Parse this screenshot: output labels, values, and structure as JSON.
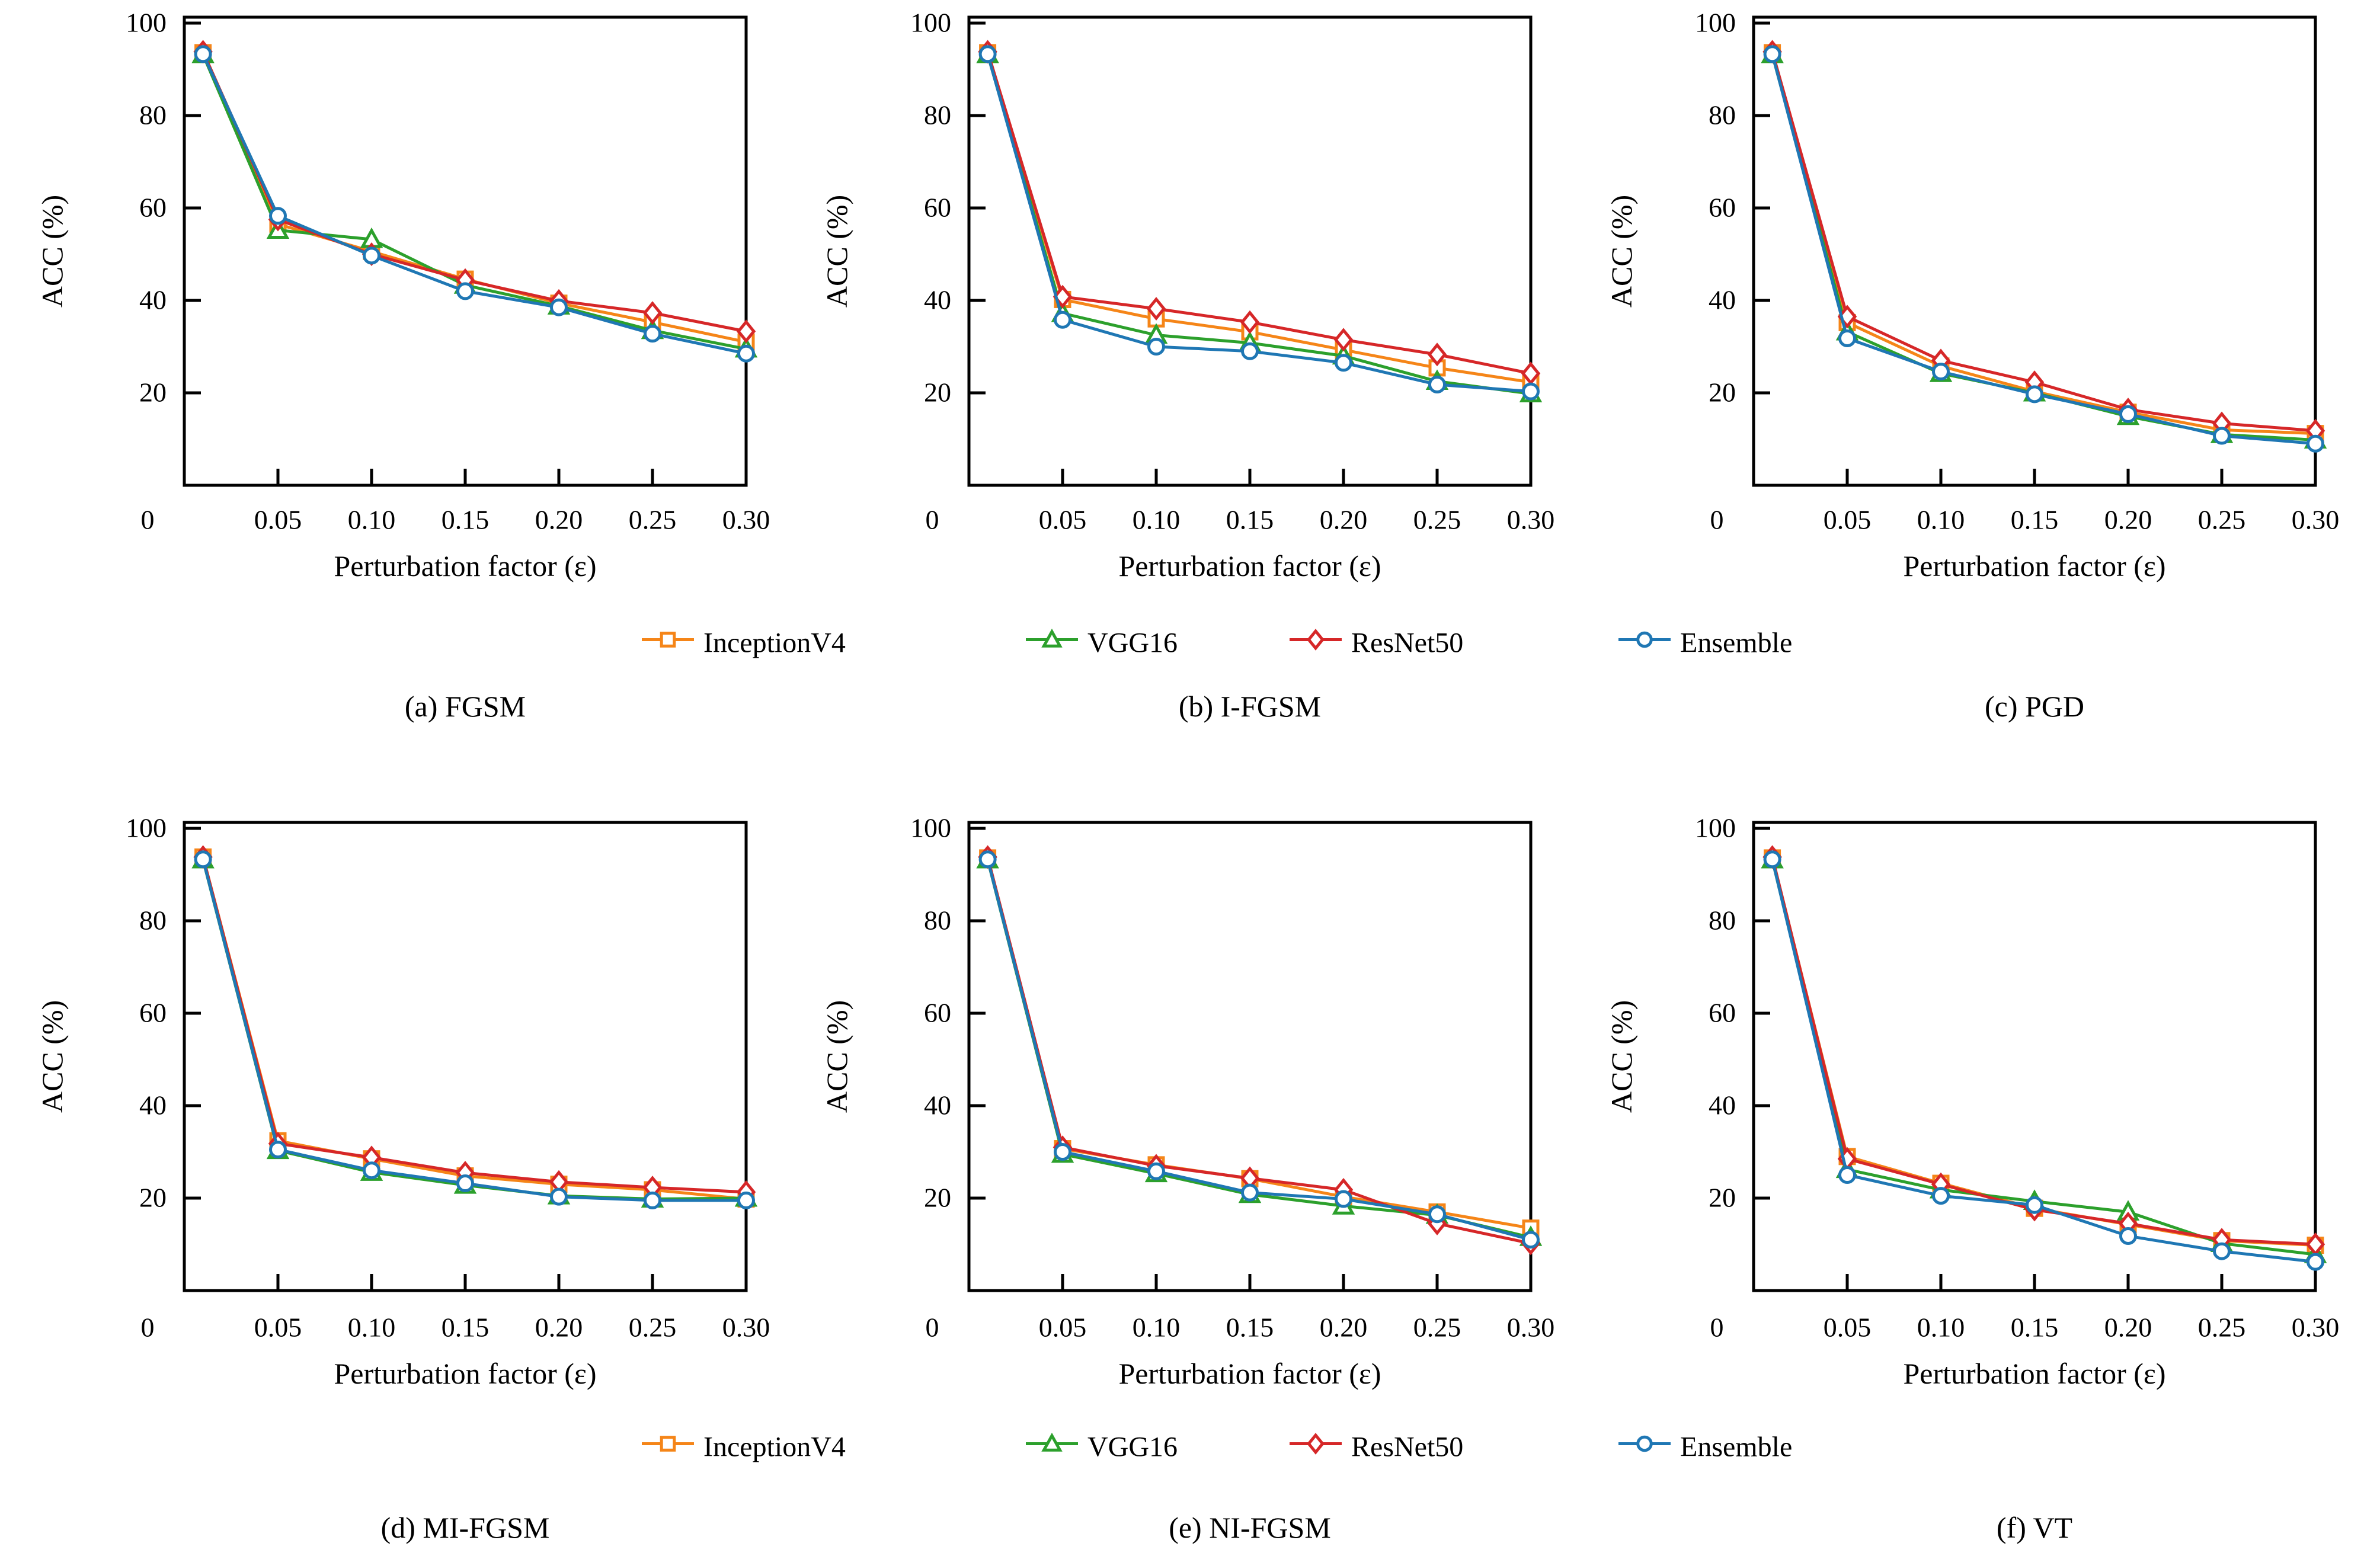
{
  "page": {
    "background": "#ffffff"
  },
  "axes": {
    "xlabel": "Perturbation factor (ε)",
    "ylabel": "ACC (%)",
    "x_tick_labels": [
      "0",
      "0.05",
      "0.10",
      "0.15",
      "0.20",
      "0.25",
      "0.30"
    ],
    "x_tick_values": [
      0,
      0.05,
      0.1,
      0.15,
      0.2,
      0.25,
      0.3
    ],
    "y_tick_labels": [
      "100",
      "80",
      "60",
      "40",
      "20"
    ],
    "y_tick_values": [
      100,
      80,
      60,
      40,
      20
    ],
    "xlim": [
      0,
      0.3
    ],
    "ylim": [
      0,
      101.3
    ],
    "grid": "off"
  },
  "legend": {
    "position": "below-row-centered",
    "items": [
      {
        "label": "InceptionV4",
        "color": "#F58518",
        "marker": "square"
      },
      {
        "label": "VGG16",
        "color": "#2CA02C",
        "marker": "triangle"
      },
      {
        "label": "ResNet50",
        "color": "#D62728",
        "marker": "diamond"
      },
      {
        "label": "Ensemble",
        "color": "#1F77B4",
        "marker": "circle"
      }
    ]
  },
  "chart_data": [
    {
      "id": "a",
      "caption": "(a) FGSM",
      "attack": "FGSM",
      "type": "line",
      "x": [
        0.01,
        0.05,
        0.1,
        0.15,
        0.2,
        0.25,
        0.3
      ],
      "xlabel": "Perturbation factor (ε)",
      "ylabel": "ACC (%)",
      "series": [
        {
          "name": "InceptionV4",
          "values": [
            93.6,
            56.5,
            50.6,
            44.6,
            39.4,
            35.3,
            31.0
          ]
        },
        {
          "name": "VGG16",
          "values": [
            93.2,
            55.2,
            53.2,
            43.3,
            38.8,
            33.5,
            29.5
          ]
        },
        {
          "name": "ResNet50",
          "values": [
            93.8,
            57.5,
            50.0,
            44.4,
            39.9,
            37.3,
            33.3
          ]
        },
        {
          "name": "Ensemble",
          "values": [
            93.3,
            58.3,
            49.7,
            42.0,
            38.5,
            32.8,
            28.5
          ]
        }
      ]
    },
    {
      "id": "b",
      "caption": "(b) I-FGSM",
      "attack": "I-FGSM",
      "type": "line",
      "x": [
        0.01,
        0.05,
        0.1,
        0.15,
        0.2,
        0.25,
        0.3
      ],
      "xlabel": "Perturbation factor (ε)",
      "ylabel": "ACC (%)",
      "series": [
        {
          "name": "InceptionV4",
          "values": [
            93.6,
            40.2,
            36.0,
            33.2,
            29.3,
            25.4,
            22.3
          ]
        },
        {
          "name": "VGG16",
          "values": [
            93.2,
            37.2,
            32.5,
            30.8,
            28.0,
            22.5,
            19.8
          ]
        },
        {
          "name": "ResNet50",
          "values": [
            93.8,
            40.8,
            38.2,
            35.3,
            31.5,
            28.3,
            24.2
          ]
        },
        {
          "name": "Ensemble",
          "values": [
            93.3,
            35.8,
            30.0,
            29.0,
            26.5,
            21.8,
            20.3
          ]
        }
      ]
    },
    {
      "id": "c",
      "caption": "(c) PGD",
      "attack": "PGD",
      "type": "line",
      "x": [
        0.01,
        0.05,
        0.1,
        0.15,
        0.2,
        0.25,
        0.3
      ],
      "xlabel": "Perturbation factor (ε)",
      "ylabel": "ACC (%)",
      "series": [
        {
          "name": "InceptionV4",
          "values": [
            93.6,
            35.2,
            25.8,
            20.3,
            15.8,
            12.0,
            11.2
          ]
        },
        {
          "name": "VGG16",
          "values": [
            93.2,
            33.2,
            24.2,
            20.0,
            14.9,
            11.0,
            9.8
          ]
        },
        {
          "name": "ResNet50",
          "values": [
            93.8,
            36.5,
            27.0,
            22.3,
            16.4,
            13.4,
            11.8
          ]
        },
        {
          "name": "Ensemble",
          "values": [
            93.3,
            31.8,
            24.6,
            19.7,
            15.4,
            10.7,
            9.0
          ]
        }
      ]
    },
    {
      "id": "d",
      "caption": "(d) MI-FGSM",
      "attack": "MI-FGSM",
      "type": "line",
      "x": [
        0.01,
        0.05,
        0.1,
        0.15,
        0.2,
        0.25,
        0.3
      ],
      "xlabel": "Perturbation factor (ε)",
      "ylabel": "ACC (%)",
      "series": [
        {
          "name": "InceptionV4",
          "values": [
            93.8,
            32.4,
            28.5,
            24.8,
            23.0,
            21.8,
            19.8
          ]
        },
        {
          "name": "VGG16",
          "values": [
            93.2,
            30.3,
            25.6,
            22.8,
            20.5,
            19.8,
            20.0
          ]
        },
        {
          "name": "ResNet50",
          "values": [
            93.8,
            31.8,
            28.8,
            25.5,
            23.5,
            22.3,
            21.3
          ]
        },
        {
          "name": "Ensemble",
          "values": [
            93.3,
            30.5,
            26.0,
            23.2,
            20.3,
            19.5,
            19.5
          ]
        }
      ]
    },
    {
      "id": "e",
      "caption": "(e) NI-FGSM",
      "attack": "NI-FGSM",
      "type": "line",
      "x": [
        0.01,
        0.05,
        0.1,
        0.15,
        0.2,
        0.25,
        0.3
      ],
      "xlabel": "Perturbation factor (ε)",
      "ylabel": "ACC (%)",
      "series": [
        {
          "name": "InceptionV4",
          "values": [
            93.6,
            30.7,
            27.2,
            24.2,
            20.3,
            17.0,
            13.5
          ]
        },
        {
          "name": "VGG16",
          "values": [
            93.2,
            29.5,
            25.3,
            20.8,
            18.3,
            16.3,
            11.5
          ]
        },
        {
          "name": "ResNet50",
          "values": [
            93.8,
            31.0,
            27.0,
            24.3,
            21.8,
            14.5,
            10.2
          ]
        },
        {
          "name": "Ensemble",
          "values": [
            93.3,
            30.0,
            25.8,
            21.2,
            19.8,
            16.5,
            11.0
          ]
        }
      ]
    },
    {
      "id": "f",
      "caption": "(f) VT",
      "attack": "VT",
      "type": "line",
      "x": [
        0.01,
        0.05,
        0.1,
        0.15,
        0.2,
        0.25,
        0.3
      ],
      "xlabel": "Perturbation factor (ε)",
      "ylabel": "ACC (%)",
      "series": [
        {
          "name": "InceptionV4",
          "values": [
            93.6,
            29.0,
            23.2,
            17.8,
            14.3,
            10.8,
            9.8
          ]
        },
        {
          "name": "VGG16",
          "values": [
            93.2,
            26.2,
            21.8,
            19.3,
            17.0,
            10.2,
            7.8
          ]
        },
        {
          "name": "ResNet50",
          "values": [
            93.8,
            28.5,
            23.0,
            17.5,
            14.5,
            11.0,
            10.0
          ]
        },
        {
          "name": "Ensemble",
          "values": [
            93.3,
            25.0,
            20.5,
            18.5,
            11.8,
            8.5,
            6.2
          ]
        }
      ]
    }
  ]
}
